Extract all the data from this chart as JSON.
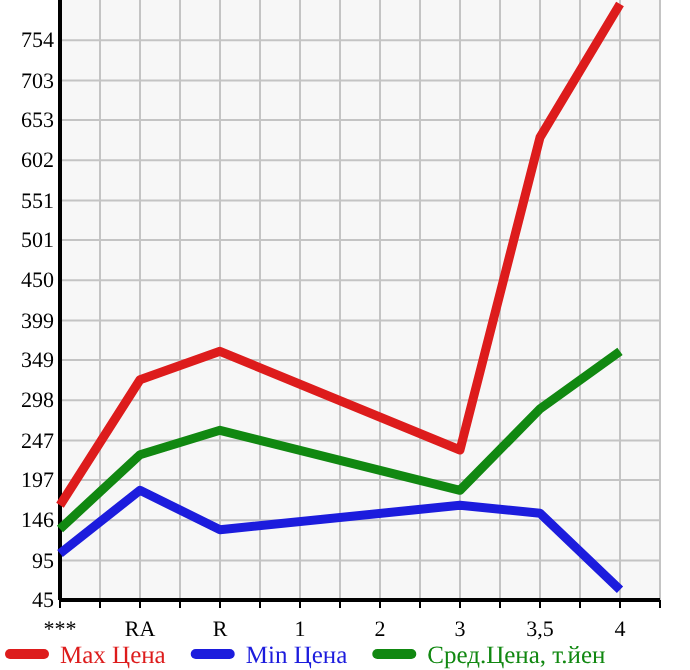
{
  "chart_data": {
    "type": "line",
    "categories": [
      "***",
      "RA",
      "R",
      "1",
      "2",
      "3",
      "3,5",
      "4"
    ],
    "series": [
      {
        "name": "Max Цена",
        "color": "#dd1c1c",
        "values": [
          165,
          324,
          360,
          null,
          null,
          235,
          631,
          800
        ]
      },
      {
        "name": "Min Цена",
        "color": "#1c1cdd",
        "values": [
          104,
          184,
          134,
          null,
          null,
          165,
          155,
          58
        ]
      },
      {
        "name": "Сред.Цена, т.йен",
        "color": "#118811",
        "values": [
          135,
          229,
          260,
          null,
          null,
          184,
          287,
          360
        ]
      }
    ],
    "ylim": [
      45,
      805
    ],
    "yticks": [
      45,
      95,
      146,
      197,
      247,
      298,
      349,
      399,
      450,
      501,
      551,
      602,
      653,
      703,
      754
    ],
    "grid": true,
    "legend": "bottom",
    "marker": "none",
    "line_style": "solid"
  }
}
